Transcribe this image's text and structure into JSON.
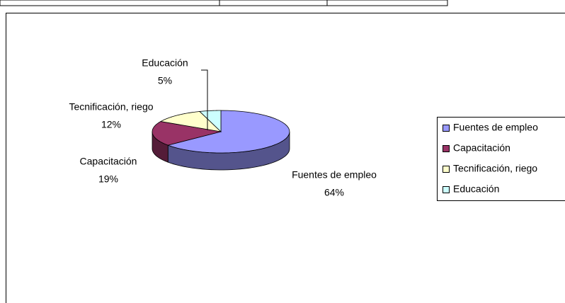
{
  "chart_data": {
    "type": "pie",
    "categories": [
      "Fuentes de empleo",
      "Capacitación",
      "Tecnificación, riego",
      "Educación"
    ],
    "values": [
      64,
      19,
      12,
      5
    ],
    "value_labels": [
      "64%",
      "19%",
      "12%",
      "5%"
    ],
    "colors": [
      "#9999ff",
      "#993366",
      "#ffffcc",
      "#ccffff"
    ],
    "legend": "right"
  }
}
